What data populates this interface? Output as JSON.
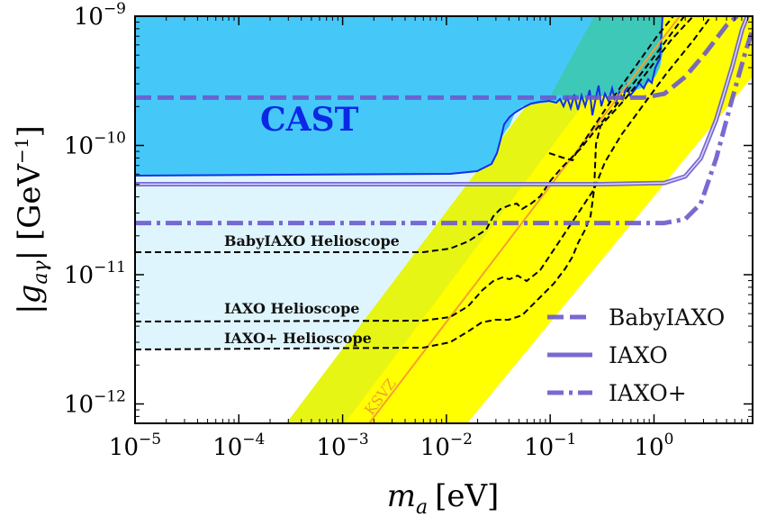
{
  "chart_data": {
    "type": "line",
    "xlabel_symbol": "m",
    "xlabel_sub": "a",
    "xlabel_unit": "[eV]",
    "ylabel_symbol": "|g",
    "ylabel_sub": "aγ",
    "ylabel_unit": "| [GeV",
    "ylabel_unit_exp": "−1",
    "ylabel_unit_close": "]",
    "xscale": "log",
    "yscale": "log",
    "xlim": [
      -5,
      0.95
    ],
    "ylim": [
      -12.15,
      -9
    ],
    "xticks": [
      {
        "exp": -5,
        "base": "10",
        "sup": "−5"
      },
      {
        "exp": -4,
        "base": "10",
        "sup": "−4"
      },
      {
        "exp": -3,
        "base": "10",
        "sup": "−3"
      },
      {
        "exp": -2,
        "base": "10",
        "sup": "−2"
      },
      {
        "exp": -1,
        "base": "10",
        "sup": "−1"
      },
      {
        "exp": 0,
        "base": "10",
        "sup": "0"
      }
    ],
    "yticks": [
      {
        "exp": -12,
        "base": "10",
        "sup": "−12"
      },
      {
        "exp": -11,
        "base": "10",
        "sup": "−11"
      },
      {
        "exp": -10,
        "base": "10",
        "sup": "−10"
      },
      {
        "exp": -9,
        "base": "10",
        "sup": "−9"
      }
    ],
    "annotations": {
      "cast": "CAST",
      "ksvz": "KSVZ",
      "babyiaxo_helioscope": "BabyIAXO Helioscope",
      "iaxo_helioscope": "IAXO Helioscope",
      "iaxo_plus_helioscope": "IAXO+ Helioscope"
    },
    "series": [
      {
        "name": "BabyIAXO",
        "style": "dashed",
        "color": "#6a5acd",
        "points": [
          [
            -5,
            -9.63
          ],
          [
            -0.6,
            -9.63
          ],
          [
            -0.1,
            -9.63
          ],
          [
            0.1,
            -9.6
          ],
          [
            0.3,
            -9.47
          ],
          [
            0.5,
            -9.28
          ],
          [
            0.7,
            -9.07
          ],
          [
            0.8,
            -9
          ]
        ]
      },
      {
        "name": "IAXO",
        "style": "solid",
        "color": "#6a5acd",
        "points": [
          [
            -5,
            -10.3
          ],
          [
            -0.5,
            -10.3
          ],
          [
            0.1,
            -10.29
          ],
          [
            0.3,
            -10.24
          ],
          [
            0.45,
            -10.1
          ],
          [
            0.6,
            -9.8
          ],
          [
            0.75,
            -9.4
          ],
          [
            0.85,
            -9.1
          ],
          [
            0.9,
            -9
          ]
        ]
      },
      {
        "name": "IAXO+",
        "style": "dashdot",
        "color": "#6a5acd",
        "points": [
          [
            -5,
            -10.6
          ],
          [
            -0.5,
            -10.6
          ],
          [
            0.1,
            -10.6
          ],
          [
            0.3,
            -10.57
          ],
          [
            0.45,
            -10.45
          ],
          [
            0.6,
            -10.1
          ],
          [
            0.75,
            -9.65
          ],
          [
            0.88,
            -9.28
          ],
          [
            0.95,
            -9.1
          ]
        ]
      }
    ],
    "legend": {
      "placement": "bottom-right",
      "entries": [
        "BabyIAXO",
        "IAXO",
        "IAXO+"
      ]
    },
    "colors": {
      "cast_fill": "#45c8f8",
      "cast_edge": "#1130e8",
      "light_blue_region": "#dff5fd",
      "qcd_band": "#ffff00",
      "qcd_band_overlap": "#e6f514",
      "cyan_overlap": "#3ec8b8",
      "ksvz_line": "#f5a030",
      "helioscope_line": "#000000",
      "frame": "#000000"
    }
  }
}
